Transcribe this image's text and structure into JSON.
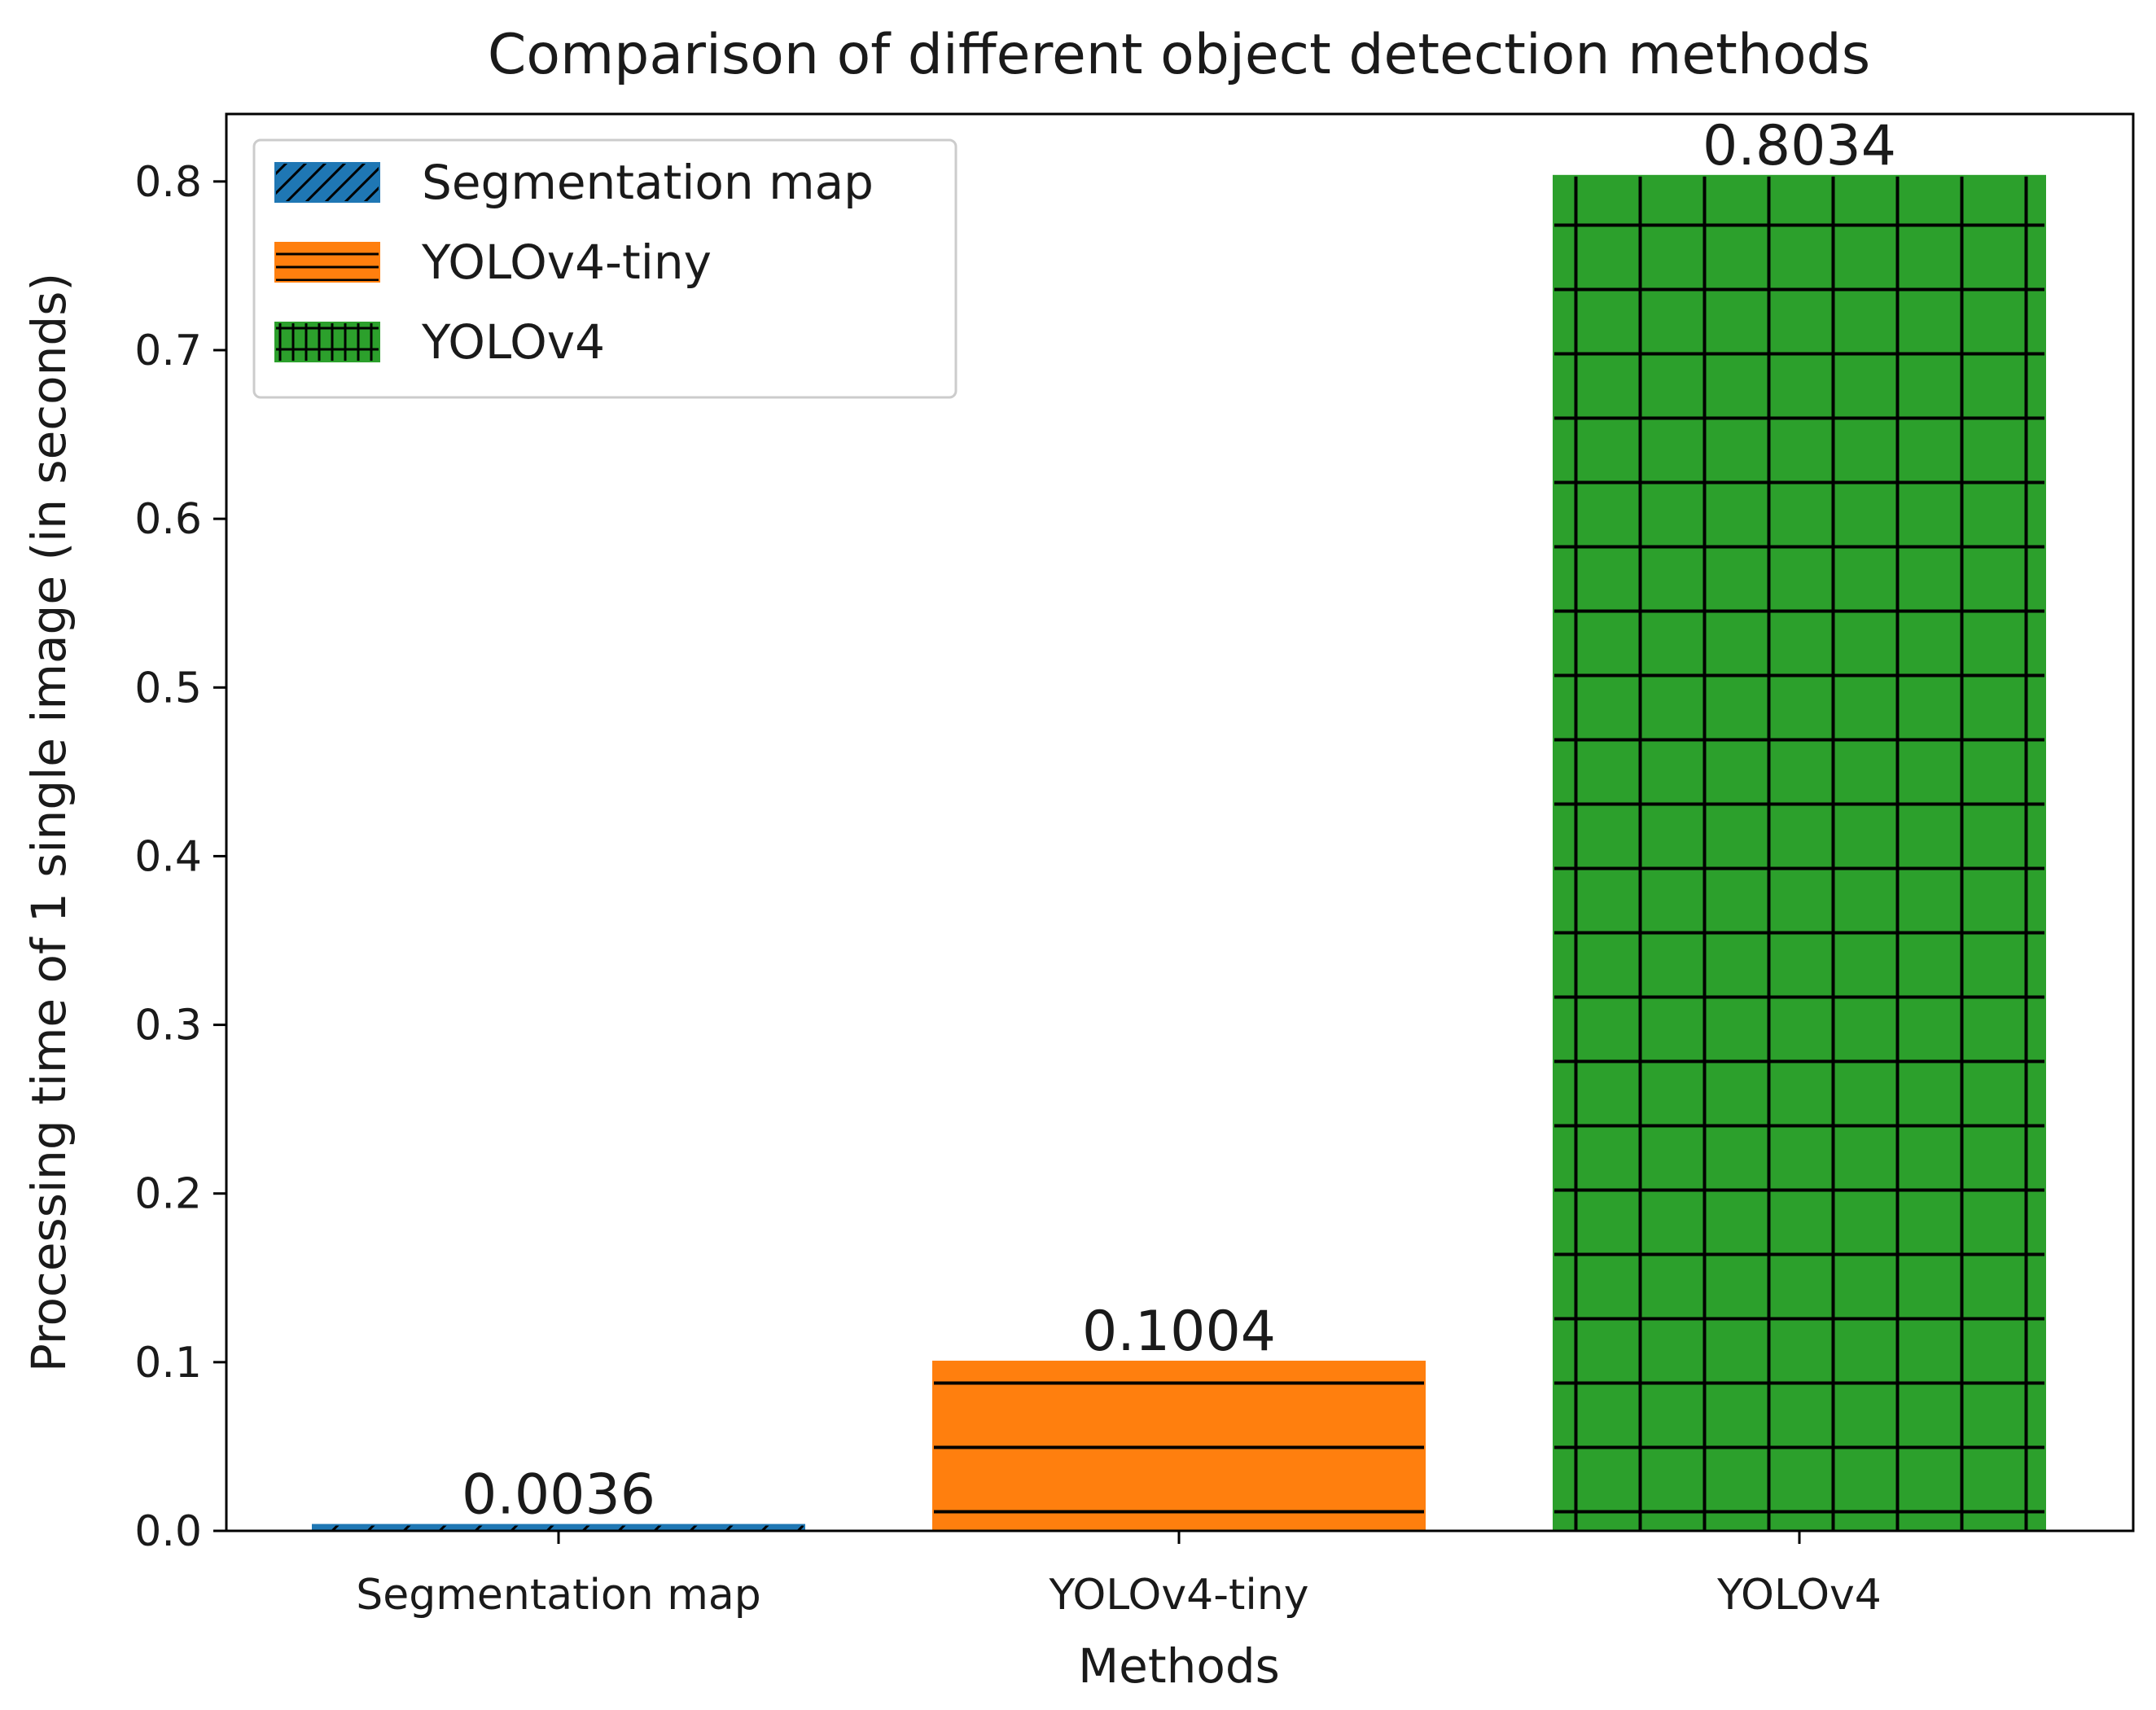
{
  "chart_data": {
    "type": "bar",
    "title": "Comparison of different object detection methods",
    "xlabel": "Methods",
    "ylabel": "Processing time of 1 single image (in seconds)",
    "categories": [
      "Segmentation map",
      "YOLOv4-tiny",
      "YOLOv4"
    ],
    "values": [
      0.0036,
      0.1004,
      0.8034
    ],
    "value_labels": [
      "0.0036",
      "0.1004",
      "0.8034"
    ],
    "colors": [
      "#1f77b4",
      "#ff7f0e",
      "#2ca02c"
    ],
    "hatches": [
      "diagonal",
      "horizontal",
      "grid"
    ],
    "ylim": [
      0.0,
      0.84
    ],
    "yticks": [
      0.0,
      0.1,
      0.2,
      0.3,
      0.4,
      0.5,
      0.6,
      0.7,
      0.8
    ],
    "ytick_labels": [
      "0.0",
      "0.1",
      "0.2",
      "0.3",
      "0.4",
      "0.5",
      "0.6",
      "0.7",
      "0.8"
    ],
    "grid": false,
    "legend": {
      "position": "top-left",
      "entries": [
        "Segmentation map",
        "YOLOv4-tiny",
        "YOLOv4"
      ]
    }
  }
}
